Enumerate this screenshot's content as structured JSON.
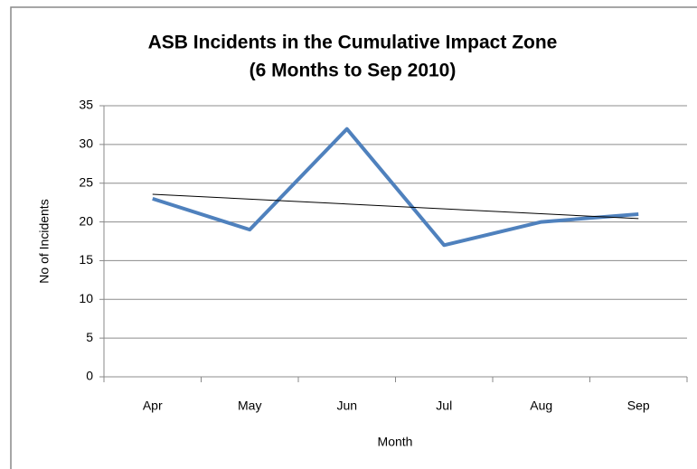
{
  "chart_data": {
    "type": "line",
    "title": "ASB Incidents in the Cumulative Impact Zone",
    "subtitle": "(6 Months to Sep 2010)",
    "x_label": "Month",
    "y_label": "No of Incidents",
    "categories": [
      "Apr",
      "May",
      "Jun",
      "Jul",
      "Aug",
      "Sep"
    ],
    "series": [
      {
        "color": "#4f81bd",
        "values": [
          23,
          19,
          32,
          17,
          20,
          21
        ]
      }
    ],
    "trendline": {
      "color": "#000000",
      "values": [
        23.57,
        20.43
      ]
    },
    "ylim": [
      0,
      35
    ],
    "yticks": [
      0,
      5,
      10,
      15,
      20,
      25,
      30,
      35
    ],
    "grid": true
  }
}
